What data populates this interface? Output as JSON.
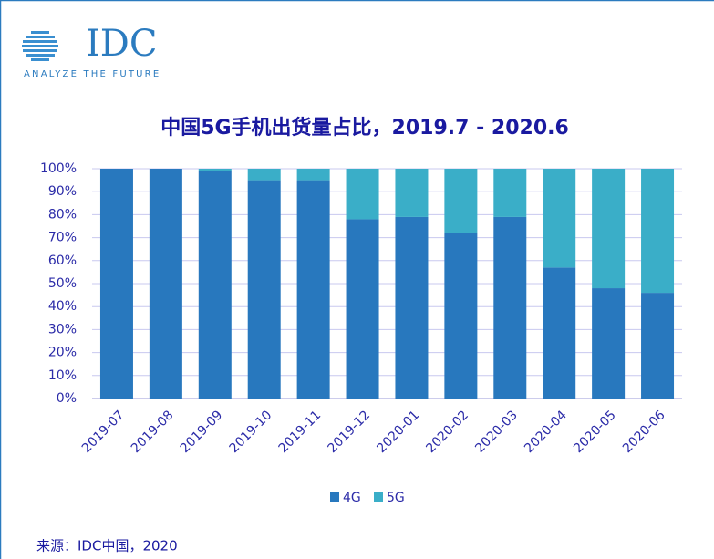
{
  "logo": {
    "name": "IDC",
    "tagline": "ANALYZE THE FUTURE"
  },
  "chart_data": {
    "type": "stacked_bar",
    "title": "中国5G手机出货量占比，2019.7 - 2020.6",
    "categories": [
      "2019-07",
      "2019-08",
      "2019-09",
      "2019-10",
      "2019-11",
      "2019-12",
      "2020-01",
      "2020-02",
      "2020-03",
      "2020-04",
      "2020-05",
      "2020-06"
    ],
    "series": [
      {
        "name": "4G",
        "color": "#2878be",
        "values": [
          100,
          100,
          99,
          95,
          95,
          78,
          79,
          72,
          79,
          57,
          48,
          46
        ]
      },
      {
        "name": "5G",
        "color": "#3aaec8",
        "values": [
          0,
          0,
          1,
          5,
          5,
          22,
          21,
          28,
          21,
          43,
          52,
          54
        ]
      }
    ],
    "ylim": [
      0,
      100
    ],
    "yticks": [
      {
        "value": 0,
        "label": "0%"
      },
      {
        "value": 10,
        "label": "10%"
      },
      {
        "value": 20,
        "label": "20%"
      },
      {
        "value": 30,
        "label": "30%"
      },
      {
        "value": 40,
        "label": "40%"
      },
      {
        "value": 50,
        "label": "50%"
      },
      {
        "value": 60,
        "label": "60%"
      },
      {
        "value": 70,
        "label": "70%"
      },
      {
        "value": 80,
        "label": "80%"
      },
      {
        "value": 90,
        "label": "90%"
      },
      {
        "value": 100,
        "label": "100%"
      }
    ],
    "grid": true,
    "legend": "bottom"
  },
  "source": "来源：IDC中国，2020"
}
